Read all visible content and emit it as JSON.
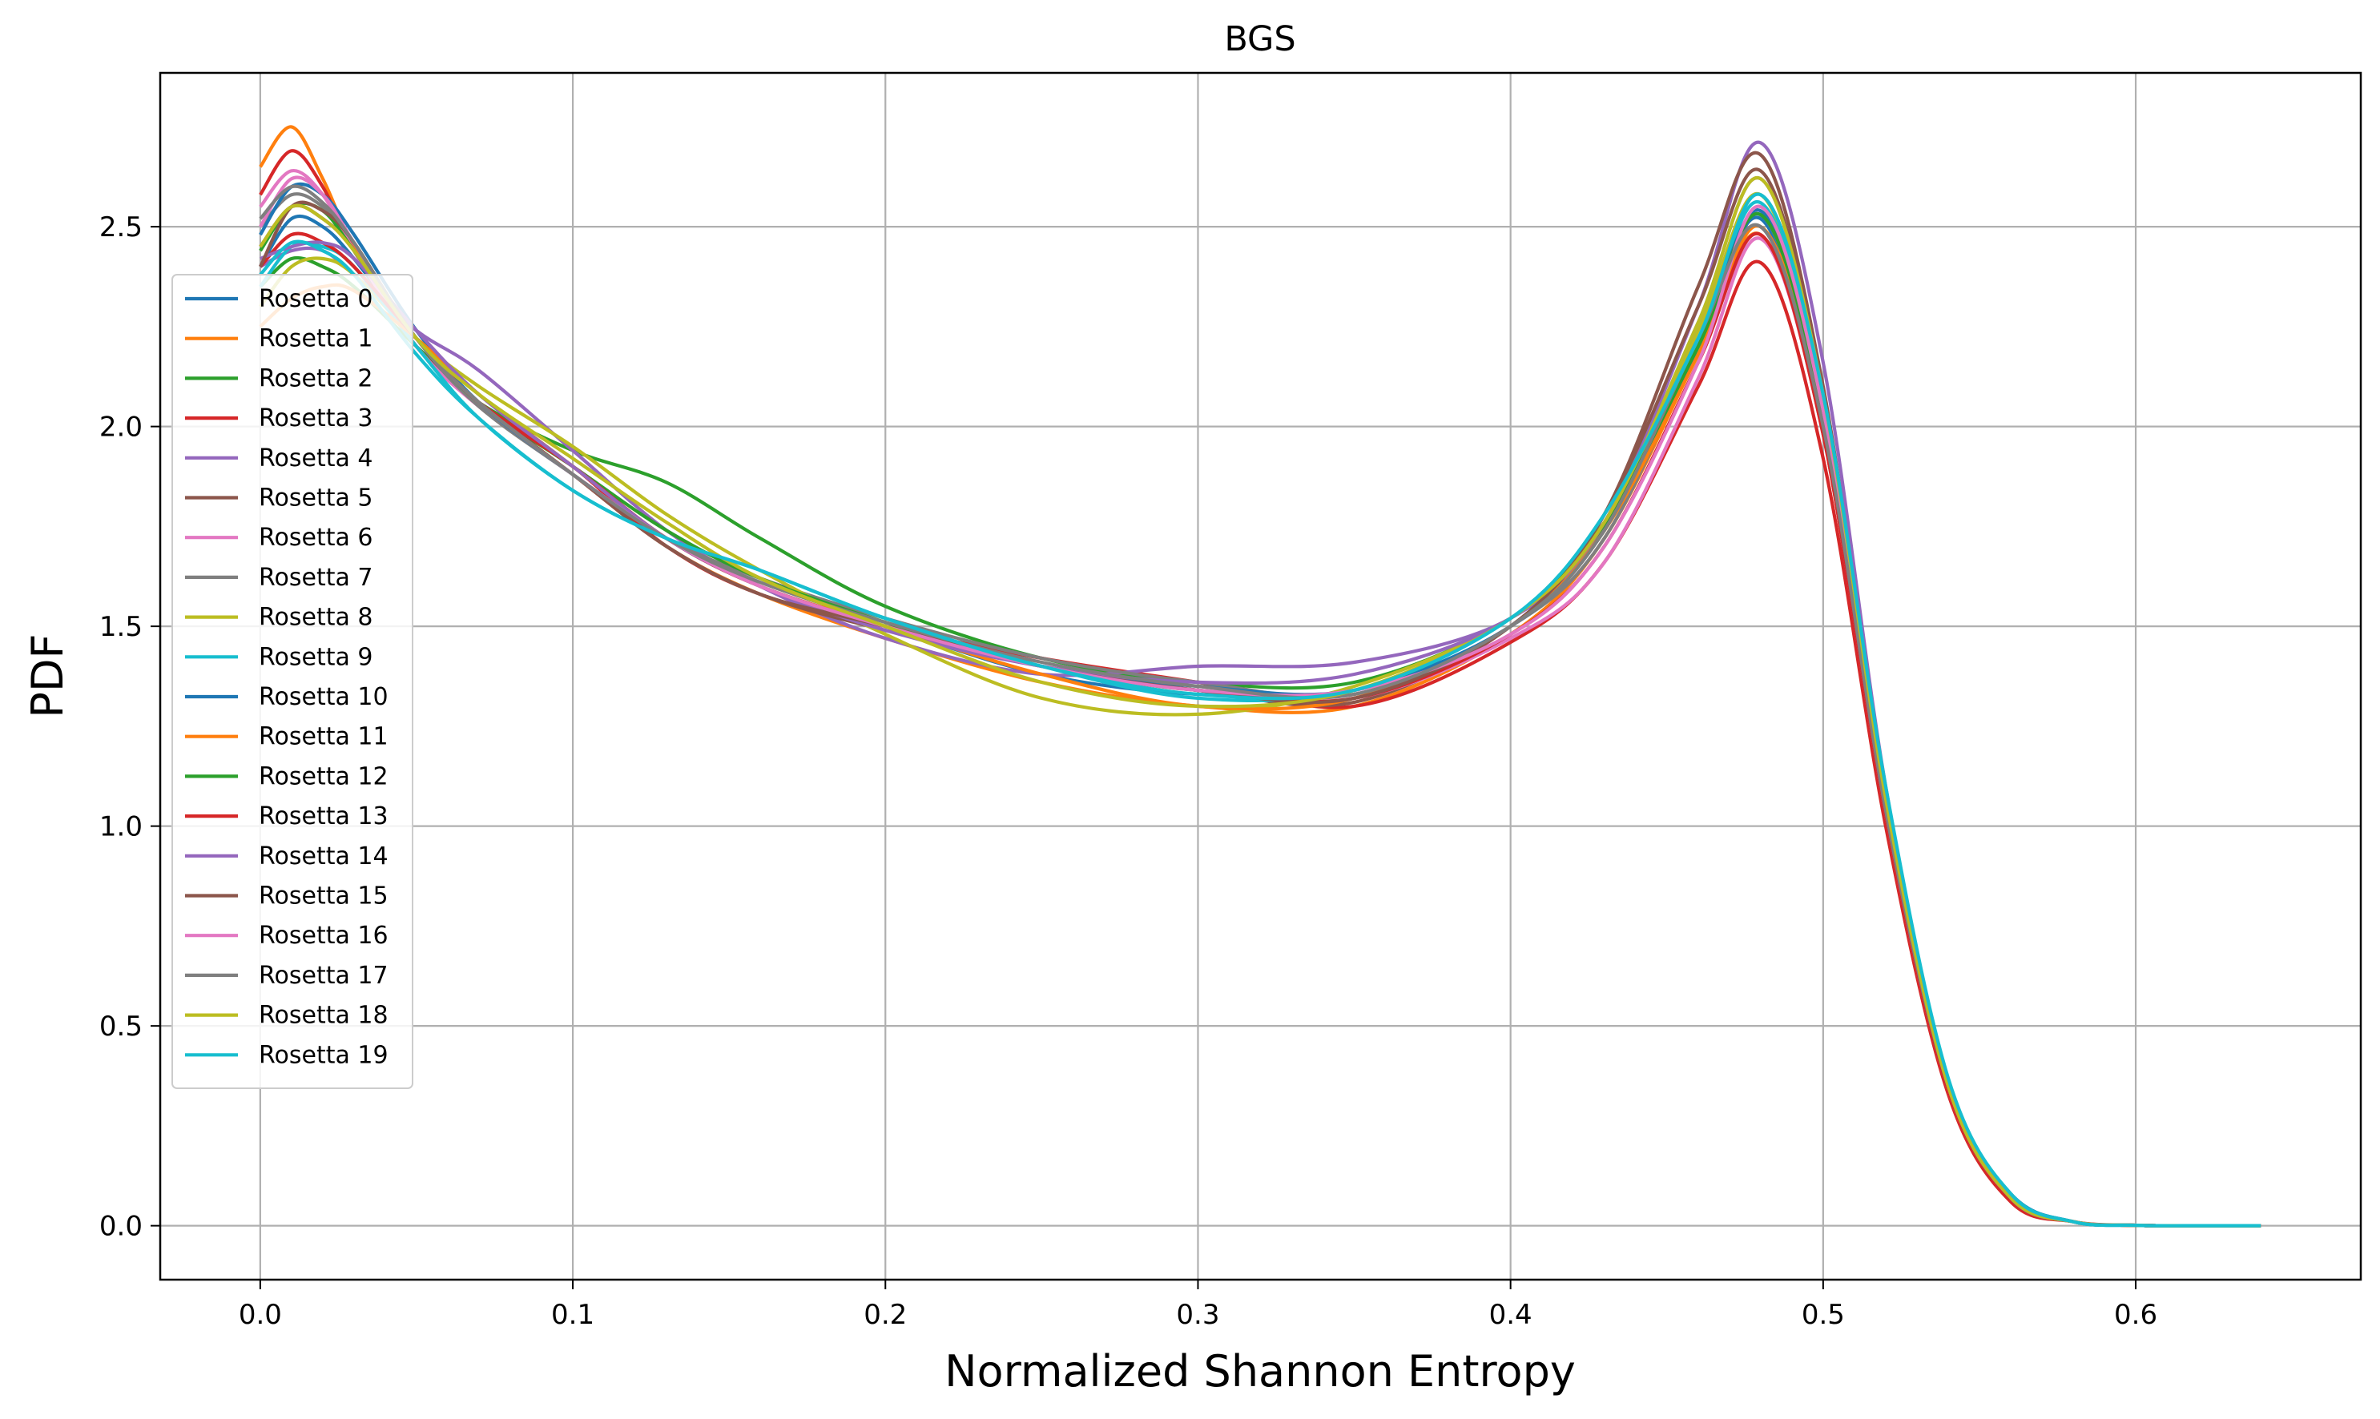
{
  "chart_data": {
    "type": "line",
    "title": "BGS",
    "xlabel": "Normalized Shannon Entropy",
    "ylabel": "PDF",
    "xlim": [
      -0.032,
      0.672
    ],
    "ylim": [
      -0.135,
      2.885
    ],
    "xticks": [
      0.0,
      0.1,
      0.2,
      0.3,
      0.4,
      0.5,
      0.6
    ],
    "xtick_labels": [
      "0.0",
      "0.1",
      "0.2",
      "0.3",
      "0.4",
      "0.5",
      "0.6"
    ],
    "yticks": [
      0.0,
      0.5,
      1.0,
      1.5,
      2.0,
      2.5
    ],
    "ytick_labels": [
      "0.0",
      "0.5",
      "1.0",
      "1.5",
      "2.0",
      "2.5"
    ],
    "grid": true,
    "legend_position": "upper-left",
    "x": [
      0.0,
      0.01,
      0.02,
      0.03,
      0.05,
      0.07,
      0.1,
      0.13,
      0.16,
      0.2,
      0.25,
      0.3,
      0.35,
      0.4,
      0.43,
      0.46,
      0.48,
      0.5,
      0.52,
      0.54,
      0.56,
      0.58,
      0.6,
      0.62,
      0.64
    ],
    "series": [
      {
        "name": "Rosetta 0",
        "color": "#1f77b4",
        "values": [
          2.4,
          2.52,
          2.5,
          2.42,
          2.22,
          2.08,
          1.9,
          1.72,
          1.6,
          1.5,
          1.38,
          1.33,
          1.34,
          1.5,
          1.74,
          2.2,
          2.52,
          2.0,
          1.05,
          0.35,
          0.07,
          0.01,
          0.001,
          0.0,
          0.0
        ]
      },
      {
        "name": "Rosetta 1",
        "color": "#ff7f0e",
        "values": [
          2.65,
          2.75,
          2.62,
          2.45,
          2.2,
          2.06,
          1.88,
          1.7,
          1.58,
          1.47,
          1.36,
          1.3,
          1.3,
          1.48,
          1.72,
          2.18,
          2.48,
          1.98,
          1.03,
          0.34,
          0.07,
          0.01,
          0.001,
          0.0,
          0.0
        ]
      },
      {
        "name": "Rosetta 2",
        "color": "#2ca02c",
        "values": [
          2.35,
          2.42,
          2.4,
          2.35,
          2.2,
          2.06,
          1.94,
          1.86,
          1.72,
          1.55,
          1.42,
          1.36,
          1.36,
          1.52,
          1.75,
          2.18,
          2.5,
          2.01,
          1.06,
          0.35,
          0.07,
          0.01,
          0.001,
          0.0,
          0.0
        ]
      },
      {
        "name": "Rosetta 3",
        "color": "#d62728",
        "values": [
          2.58,
          2.69,
          2.6,
          2.44,
          2.2,
          2.06,
          1.9,
          1.7,
          1.58,
          1.5,
          1.42,
          1.36,
          1.3,
          1.46,
          1.66,
          2.1,
          2.41,
          1.92,
          1.0,
          0.33,
          0.06,
          0.01,
          0.001,
          0.0,
          0.0
        ]
      },
      {
        "name": "Rosetta 4",
        "color": "#9467bd",
        "values": [
          2.4,
          2.44,
          2.44,
          2.38,
          2.24,
          2.14,
          1.94,
          1.74,
          1.6,
          1.47,
          1.38,
          1.4,
          1.41,
          1.52,
          1.76,
          2.3,
          2.71,
          2.16,
          1.1,
          0.36,
          0.07,
          0.01,
          0.001,
          0.0,
          0.0
        ]
      },
      {
        "name": "Rosetta 5",
        "color": "#8c564b",
        "values": [
          2.45,
          2.55,
          2.52,
          2.44,
          2.2,
          2.06,
          1.88,
          1.7,
          1.58,
          1.49,
          1.4,
          1.34,
          1.31,
          1.5,
          1.78,
          2.35,
          2.68,
          2.1,
          1.06,
          0.35,
          0.07,
          0.01,
          0.001,
          0.0,
          0.0
        ]
      },
      {
        "name": "Rosetta 6",
        "color": "#e377c2",
        "values": [
          2.55,
          2.64,
          2.58,
          2.44,
          2.2,
          2.05,
          1.88,
          1.72,
          1.6,
          1.5,
          1.4,
          1.34,
          1.32,
          1.47,
          1.66,
          2.12,
          2.47,
          1.98,
          1.03,
          0.34,
          0.07,
          0.01,
          0.001,
          0.0,
          0.0
        ]
      },
      {
        "name": "Rosetta 7",
        "color": "#7f7f7f",
        "values": [
          2.5,
          2.58,
          2.55,
          2.46,
          2.22,
          2.05,
          1.88,
          1.72,
          1.62,
          1.52,
          1.42,
          1.36,
          1.33,
          1.5,
          1.72,
          2.2,
          2.53,
          2.02,
          1.05,
          0.35,
          0.07,
          0.01,
          0.001,
          0.0,
          0.0
        ]
      },
      {
        "name": "Rosetta 8",
        "color": "#bcbd22",
        "values": [
          2.3,
          2.4,
          2.42,
          2.38,
          2.22,
          2.1,
          1.95,
          1.78,
          1.64,
          1.48,
          1.32,
          1.28,
          1.35,
          1.52,
          1.76,
          2.24,
          2.58,
          2.06,
          1.07,
          0.35,
          0.07,
          0.01,
          0.001,
          0.0,
          0.0
        ]
      },
      {
        "name": "Rosetta 9",
        "color": "#17becf",
        "values": [
          2.35,
          2.45,
          2.45,
          2.4,
          2.2,
          2.02,
          1.84,
          1.72,
          1.64,
          1.52,
          1.4,
          1.32,
          1.34,
          1.5,
          1.78,
          2.22,
          2.56,
          2.05,
          1.08,
          0.36,
          0.08,
          0.01,
          0.001,
          0.0,
          0.0
        ]
      },
      {
        "name": "Rosetta 10",
        "color": "#1f77b4",
        "values": [
          2.48,
          2.6,
          2.58,
          2.48,
          2.24,
          2.06,
          1.88,
          1.72,
          1.6,
          1.5,
          1.4,
          1.35,
          1.34,
          1.5,
          1.74,
          2.2,
          2.54,
          2.04,
          1.07,
          0.36,
          0.08,
          0.01,
          0.001,
          0.0,
          0.0
        ]
      },
      {
        "name": "Rosetta 11",
        "color": "#ff7f0e",
        "values": [
          2.25,
          2.32,
          2.35,
          2.34,
          2.22,
          2.08,
          1.9,
          1.72,
          1.6,
          1.5,
          1.38,
          1.3,
          1.32,
          1.5,
          1.74,
          2.18,
          2.5,
          2.02,
          1.06,
          0.35,
          0.07,
          0.01,
          0.001,
          0.0,
          0.0
        ]
      },
      {
        "name": "Rosetta 12",
        "color": "#2ca02c",
        "values": [
          2.44,
          2.55,
          2.54,
          2.44,
          2.22,
          2.06,
          1.9,
          1.74,
          1.62,
          1.51,
          1.4,
          1.34,
          1.34,
          1.52,
          1.76,
          2.2,
          2.53,
          2.03,
          1.06,
          0.35,
          0.07,
          0.01,
          0.001,
          0.0,
          0.0
        ]
      },
      {
        "name": "Rosetta 13",
        "color": "#d62728",
        "values": [
          2.4,
          2.48,
          2.46,
          2.4,
          2.22,
          2.06,
          1.9,
          1.72,
          1.6,
          1.5,
          1.4,
          1.34,
          1.32,
          1.48,
          1.7,
          2.16,
          2.48,
          1.98,
          1.03,
          0.34,
          0.07,
          0.01,
          0.001,
          0.0,
          0.0
        ]
      },
      {
        "name": "Rosetta 14",
        "color": "#9467bd",
        "values": [
          2.42,
          2.45,
          2.46,
          2.42,
          2.24,
          2.08,
          1.9,
          1.72,
          1.6,
          1.49,
          1.4,
          1.36,
          1.38,
          1.52,
          1.76,
          2.26,
          2.62,
          2.08,
          1.07,
          0.35,
          0.07,
          0.01,
          0.001,
          0.0,
          0.0
        ]
      },
      {
        "name": "Rosetta 15",
        "color": "#8c564b",
        "values": [
          2.4,
          2.55,
          2.54,
          2.46,
          2.22,
          2.06,
          1.88,
          1.7,
          1.58,
          1.5,
          1.4,
          1.34,
          1.32,
          1.5,
          1.78,
          2.3,
          2.64,
          2.08,
          1.05,
          0.35,
          0.07,
          0.01,
          0.001,
          0.0,
          0.0
        ]
      },
      {
        "name": "Rosetta 16",
        "color": "#e377c2",
        "values": [
          2.5,
          2.62,
          2.58,
          2.46,
          2.22,
          2.06,
          1.88,
          1.72,
          1.6,
          1.5,
          1.4,
          1.34,
          1.34,
          1.48,
          1.7,
          2.16,
          2.55,
          2.04,
          1.06,
          0.35,
          0.07,
          0.01,
          0.001,
          0.0,
          0.0
        ]
      },
      {
        "name": "Rosetta 17",
        "color": "#7f7f7f",
        "values": [
          2.52,
          2.6,
          2.56,
          2.46,
          2.22,
          2.06,
          1.88,
          1.72,
          1.61,
          1.51,
          1.41,
          1.35,
          1.33,
          1.5,
          1.74,
          2.22,
          2.5,
          2.0,
          1.04,
          0.35,
          0.07,
          0.01,
          0.001,
          0.0,
          0.0
        ]
      },
      {
        "name": "Rosetta 18",
        "color": "#bcbd22",
        "values": [
          2.45,
          2.55,
          2.52,
          2.44,
          2.22,
          2.08,
          1.92,
          1.76,
          1.62,
          1.5,
          1.36,
          1.3,
          1.34,
          1.52,
          1.76,
          2.26,
          2.62,
          2.08,
          1.07,
          0.35,
          0.07,
          0.01,
          0.001,
          0.0,
          0.0
        ]
      },
      {
        "name": "Rosetta 19",
        "color": "#17becf",
        "values": [
          2.38,
          2.46,
          2.44,
          2.38,
          2.18,
          2.02,
          1.84,
          1.72,
          1.64,
          1.52,
          1.4,
          1.33,
          1.34,
          1.52,
          1.78,
          2.22,
          2.58,
          2.08,
          1.1,
          0.37,
          0.08,
          0.01,
          0.001,
          0.0,
          0.0
        ]
      }
    ]
  }
}
